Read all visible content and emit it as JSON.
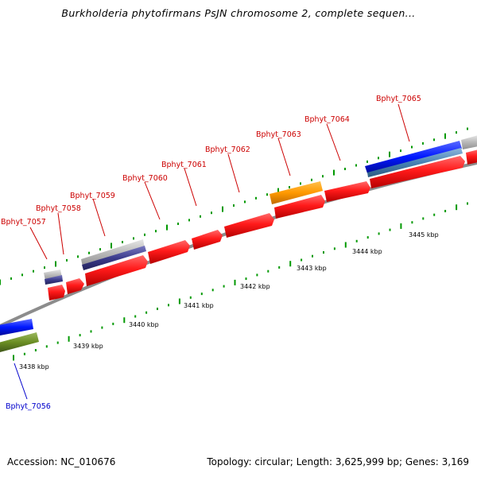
{
  "title": "Burkholderia phytofirmans PsJN chromosome 2, complete sequen...",
  "footer": {
    "accession": "Accession: NC_010676",
    "summary": "Topology: circular; Length: 3,625,999 bp; Genes: 3,169"
  },
  "colors": {
    "backbone": "#8c8c8c",
    "forward_cds": "#ff1a1a",
    "forward_cds_alt": "#ff9900",
    "reverse_cds": "#0018ff",
    "reverse_cds_alt": "#6b8e23",
    "feature_gray": "#b8b8b8",
    "feature_navy": "#3c3c8c",
    "feature_steel": "#4682b4",
    "tick": "#009900",
    "label_red": "#cc0000",
    "label_blue": "#0000cc"
  },
  "scale": {
    "unit": "kbp",
    "ticks": [
      "3438 kbp",
      "3439 kbp",
      "3440 kbp",
      "3441 kbp",
      "3442 kbp",
      "3443 kbp",
      "3444 kbp",
      "3445 kbp"
    ]
  },
  "genes": [
    {
      "name": "Bphyt_7056",
      "strand": "reverse"
    },
    {
      "name": "Bphyt_7057",
      "strand": "forward"
    },
    {
      "name": "Bphyt_7058",
      "strand": "forward"
    },
    {
      "name": "Bphyt_7059",
      "strand": "forward"
    },
    {
      "name": "Bphyt_7060",
      "strand": "forward"
    },
    {
      "name": "Bphyt_7061",
      "strand": "forward"
    },
    {
      "name": "Bphyt_7062",
      "strand": "forward"
    },
    {
      "name": "Bphyt_7063",
      "strand": "forward"
    },
    {
      "name": "Bphyt_7064",
      "strand": "forward"
    },
    {
      "name": "Bphyt_7065",
      "strand": "forward"
    }
  ]
}
